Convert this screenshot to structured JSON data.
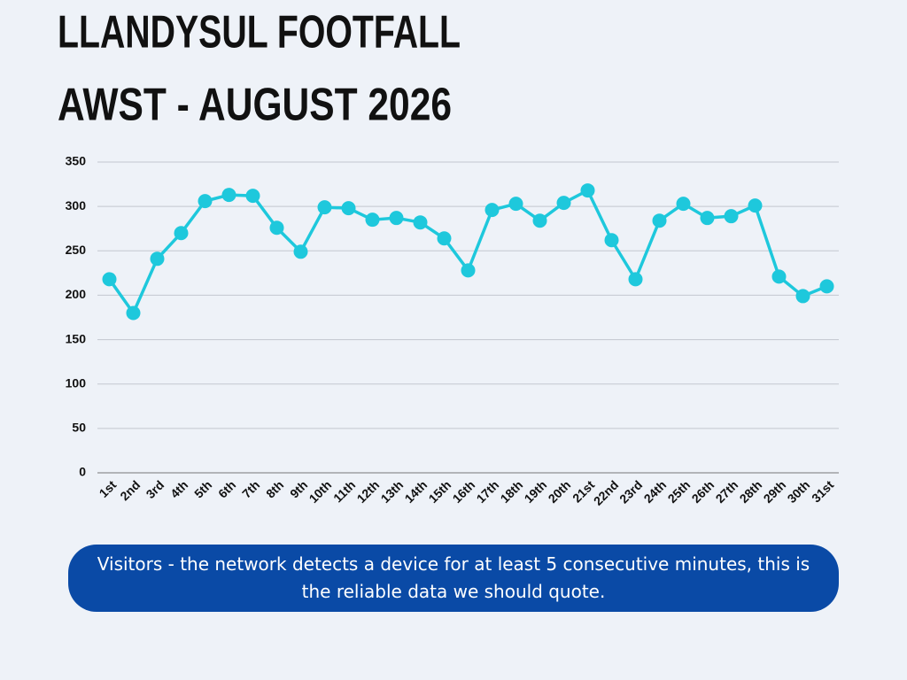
{
  "chart_data": {
    "type": "line",
    "title": [
      "LLANDYSUL FOOTFALL",
      "AWST - AUGUST 2026"
    ],
    "categories": [
      "1st",
      "2nd",
      "3rd",
      "4th",
      "5th",
      "6th",
      "7th",
      "8th",
      "9th",
      "10th",
      "11th",
      "12th",
      "13th",
      "14th",
      "15th",
      "16th",
      "17th",
      "18th",
      "19th",
      "20th",
      "21st",
      "22nd",
      "23rd",
      "24th",
      "25th",
      "26th",
      "27th",
      "28th",
      "29th",
      "30th",
      "31st"
    ],
    "values": [
      218,
      180,
      241,
      270,
      306,
      313,
      312,
      276,
      249,
      299,
      298,
      285,
      287,
      282,
      264,
      228,
      296,
      303,
      284,
      304,
      318,
      262,
      218,
      284,
      303,
      287,
      289,
      301,
      221,
      199,
      210
    ],
    "color": "#1ec8dc",
    "ylim": [
      0,
      350
    ],
    "yticks": [
      0,
      50,
      100,
      150,
      200,
      250,
      300,
      350
    ],
    "grid": true,
    "annotation": "Visitors - the network detects a device for at least 5 consecutive minutes, this is the reliable data we should quote."
  }
}
